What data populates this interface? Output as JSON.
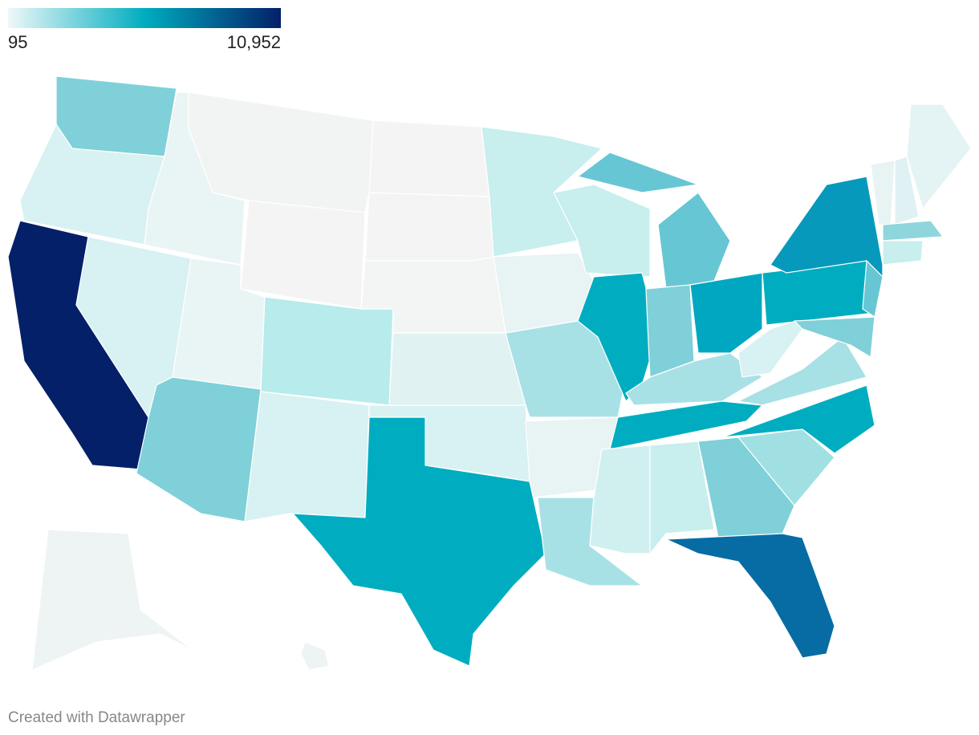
{
  "chart_data": {
    "type": "choropleth",
    "legend": {
      "min": 95,
      "max": {
        "value": 10952,
        "label": "10,952"
      },
      "colors": [
        "#eef8f8",
        "#00adc0",
        "#032068"
      ]
    },
    "region_colors": [
      "#7fd0d8",
      "#d8f1f2",
      "#032068",
      "#e9f4f5",
      "#d8f1f2",
      "#f2f4f4",
      "#f4f4f4",
      "#e9f4f5",
      "#7fd0d8",
      "#b8ebeb",
      "#d8f1f2",
      "#f4f4f4",
      "#f4f4f4",
      "#f3f4f4",
      "#e0f2f2",
      "#d8f1f2",
      "#00adc0",
      "#c8eeee",
      "#e8f3f4",
      "#a8e1e5",
      "#e8f3f4",
      "#a8e1e5",
      "#c8eeee",
      "#00adc0",
      "#66c6d4",
      "#66c6d4",
      "#7fd0d8",
      "#00a7c0",
      "#a8e1e5",
      "#00adc0",
      "#d0f0f0",
      "#c8eeee",
      "#7fd0d8",
      "#076ca4",
      "#a0e0e2",
      "#00adc0",
      "#a8e1e5",
      "#d8f1f2",
      "#00adc0",
      "#0799bc",
      "#66c6d4",
      "#7fd0d8",
      "#e8f3f4",
      "#e0f1f3",
      "#e4f3f4",
      "#8fd6dc",
      "#c8eeee",
      "#eef3f3",
      "#eef3f3"
    ],
    "credit": "Created with Datawrapper"
  }
}
